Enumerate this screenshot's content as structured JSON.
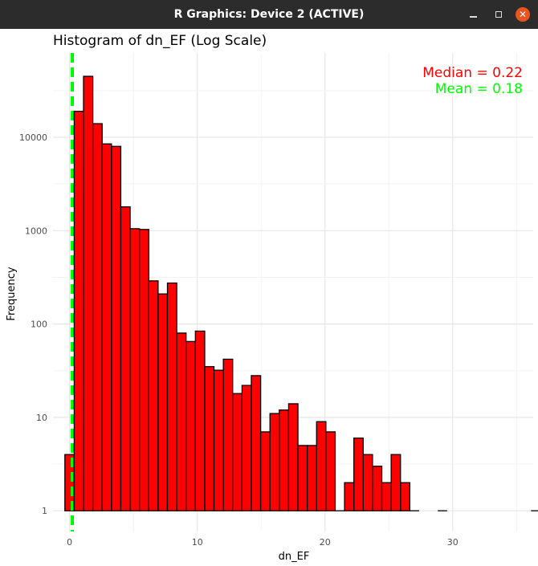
{
  "window": {
    "title": "R Graphics: Device 2 (ACTIVE)",
    "minimize_icon": "minimize-icon",
    "maximize_icon": "maximize-icon",
    "close_icon": "close-icon"
  },
  "chart_data": {
    "type": "bar",
    "title": "Histogram of dn_EF (Log Scale)",
    "xlabel": "dn_EF",
    "ylabel": "Frequency",
    "y_scale": "log10",
    "x_ticks": [
      0,
      10,
      20,
      30
    ],
    "y_ticks": [
      1,
      10,
      100,
      1000,
      10000
    ],
    "y_tick_labels": [
      "1",
      "10",
      "100",
      "1000",
      "10000"
    ],
    "xlim": [
      -1.3,
      36.3
    ],
    "ylim": [
      0.6,
      80000
    ],
    "grid": true,
    "bin_width": 0.73,
    "bin_start": -0.37,
    "counts": [
      4,
      19000,
      45000,
      14000,
      8500,
      8000,
      1800,
      1050,
      1030,
      290,
      210,
      275,
      80,
      65,
      84,
      35,
      32,
      42,
      18,
      22,
      28,
      7,
      11,
      12,
      14,
      5,
      5,
      9,
      7,
      1,
      2,
      6,
      4,
      3,
      2,
      4,
      2,
      1,
      0,
      0,
      1,
      0,
      0,
      0,
      0,
      0,
      0,
      0,
      0,
      0,
      1
    ],
    "bar_fill": "#ff0000",
    "bar_outline": "#000000",
    "annotations": [
      {
        "text": "Median = 0.22",
        "color": "#ff0000",
        "x_value": 0.22,
        "line_style": "dashed"
      },
      {
        "text": "Mean = 0.18",
        "color": "#00ff00",
        "x_value": 0.18,
        "line_style": "dashed"
      }
    ]
  }
}
